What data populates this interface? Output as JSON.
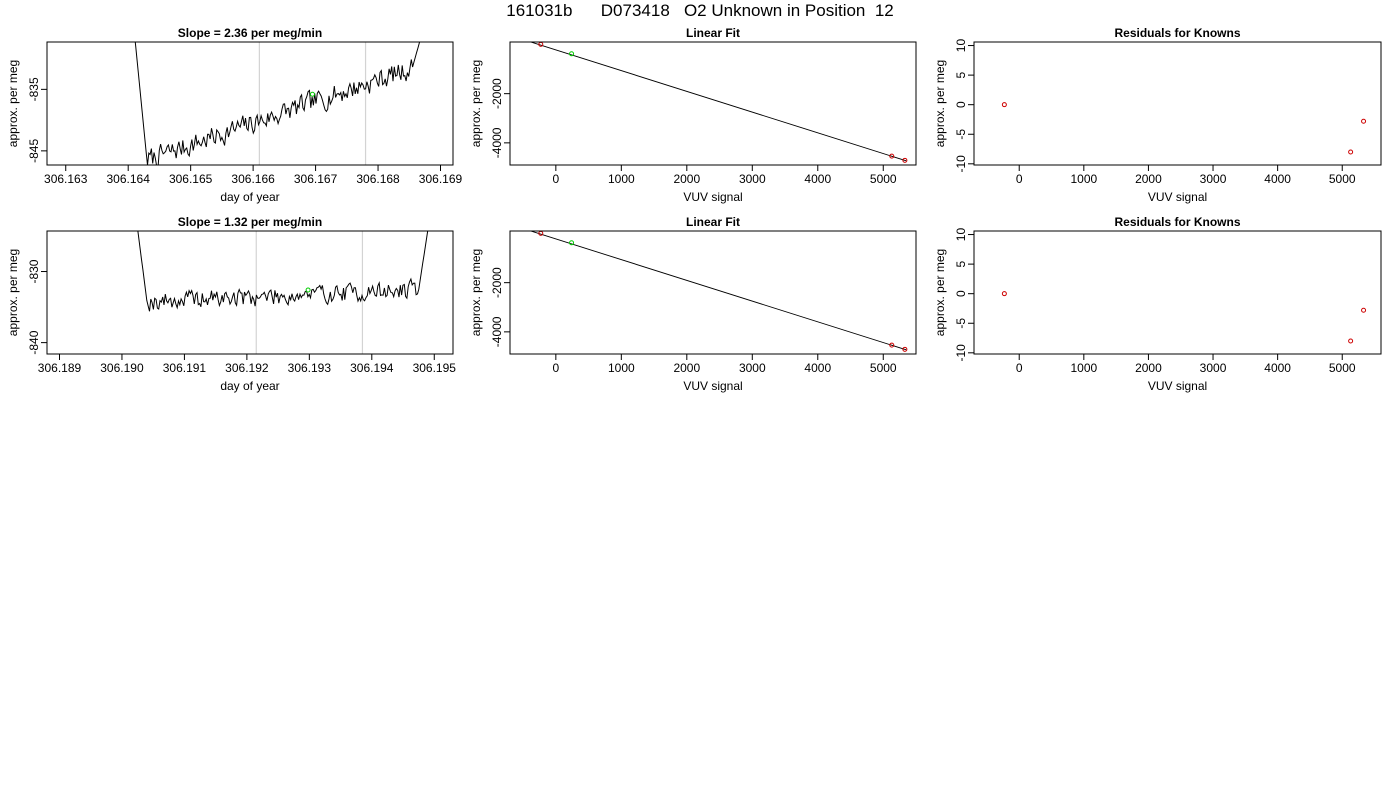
{
  "page": {
    "title": "161031b      D073418   O2 Unknown in Position  12"
  },
  "colors": {
    "line": "#000000",
    "grid_marker": "#d3d3d3",
    "known_point": "#cd0000",
    "unknown_point": "#00cd00"
  },
  "chart_data": [
    {
      "type": "line",
      "title": "Slope =  2.36  per meg/min",
      "xlabel": "day of year",
      "ylabel": "approx. per meg",
      "xlim": [
        306.1627,
        306.1692
      ],
      "ylim": [
        -847.3,
        -827.3
      ],
      "xticks": [
        "306.163",
        "306.164",
        "306.165",
        "306.166",
        "306.167",
        "306.168",
        "306.169"
      ],
      "yticks": [
        "-835",
        "-845"
      ],
      "vlines": [
        306.1661,
        306.1678
      ],
      "trace": {
        "x_start": 306.1641,
        "x_end": 306.1687,
        "start": -826,
        "end": -826,
        "drop_start": 306.1641,
        "drop_end": 306.1643,
        "rise_start": 306.16855,
        "rise_end": 306.1687,
        "low_level": -846.5,
        "high_level": -831.5,
        "noise": 1.6,
        "points": 220,
        "seed": 7
      },
      "marker": {
        "x": 306.16695,
        "y": -835.8
      }
    },
    {
      "type": "scatter",
      "title": "Linear Fit",
      "xlabel": "VUV signal",
      "ylabel": "approx. per meg",
      "xlim": [
        -700,
        5500
      ],
      "ylim": [
        -4900,
        100
      ],
      "xticks": [
        0,
        1000,
        2000,
        3000,
        4000,
        5000
      ],
      "yticks": [
        -2000,
        -4000
      ],
      "fit_line": {
        "x": [
          -500,
          5350
        ],
        "y": [
          200,
          -4730
        ]
      },
      "known_points": [
        {
          "x": -230,
          "y": 5
        },
        {
          "x": 5130,
          "y": -4540
        },
        {
          "x": 5330,
          "y": -4710
        }
      ],
      "unknown_points": [
        {
          "x": 240,
          "y": -380
        }
      ]
    },
    {
      "type": "scatter",
      "title": "Residuals for Knowns",
      "xlabel": "VUV signal",
      "ylabel": "approx. per meg",
      "xlim": [
        -700,
        5600
      ],
      "ylim": [
        -10.2,
        10.6
      ],
      "xticks": [
        0,
        1000,
        2000,
        3000,
        4000,
        5000
      ],
      "yticks": [
        10,
        5,
        0,
        -5,
        -10
      ],
      "known_points": [
        {
          "x": -230,
          "y": 0
        },
        {
          "x": 5130,
          "y": -8
        },
        {
          "x": 5330,
          "y": -2.8
        }
      ]
    },
    {
      "type": "line",
      "title": "Slope =  1.32  per meg/min",
      "xlabel": "day of year",
      "ylabel": "approx. per meg",
      "xlim": [
        306.1888,
        306.1953
      ],
      "ylim": [
        -841.6,
        -824.3
      ],
      "xticks": [
        "306.189",
        "306.190",
        "306.191",
        "306.192",
        "306.193",
        "306.194",
        "306.195"
      ],
      "yticks": [
        "-830",
        "-840"
      ],
      "vlines": [
        306.19215,
        306.19385
      ],
      "trace": {
        "x_start": 306.19025,
        "x_end": 306.1949,
        "start": -824,
        "end": -824,
        "drop_start": 306.19025,
        "drop_end": 306.1904,
        "rise_start": 306.19475,
        "rise_end": 306.1949,
        "low_level": -834.2,
        "high_level": -832.6,
        "noise": 1.2,
        "points": 220,
        "seed": 19
      },
      "marker": {
        "x": 306.19298,
        "y": -832.6
      }
    },
    {
      "type": "scatter",
      "title": "Linear Fit",
      "xlabel": "VUV signal",
      "ylabel": "approx. per meg",
      "xlim": [
        -700,
        5500
      ],
      "ylim": [
        -4900,
        100
      ],
      "xticks": [
        0,
        1000,
        2000,
        3000,
        4000,
        5000
      ],
      "yticks": [
        -2000,
        -4000
      ],
      "fit_line": {
        "x": [
          -500,
          5350
        ],
        "y": [
          200,
          -4730
        ]
      },
      "known_points": [
        {
          "x": -230,
          "y": 5
        },
        {
          "x": 5130,
          "y": -4540
        },
        {
          "x": 5330,
          "y": -4710
        }
      ],
      "unknown_points": [
        {
          "x": 240,
          "y": -380
        }
      ]
    },
    {
      "type": "scatter",
      "title": "Residuals for Knowns",
      "xlabel": "VUV signal",
      "ylabel": "approx. per meg",
      "xlim": [
        -700,
        5600
      ],
      "ylim": [
        -10.2,
        10.6
      ],
      "xticks": [
        0,
        1000,
        2000,
        3000,
        4000,
        5000
      ],
      "yticks": [
        10,
        5,
        0,
        -5,
        -10
      ],
      "known_points": [
        {
          "x": -230,
          "y": 0
        },
        {
          "x": 5130,
          "y": -8
        },
        {
          "x": 5330,
          "y": -2.8
        }
      ]
    }
  ]
}
